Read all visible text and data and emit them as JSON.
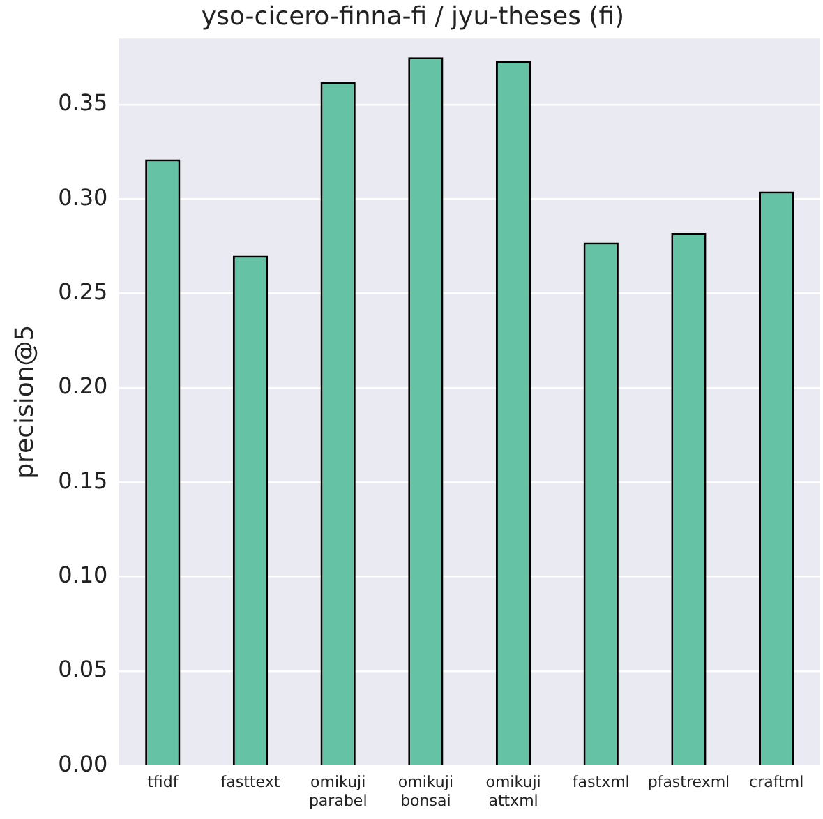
{
  "chart_data": {
    "type": "bar",
    "title": "yso-cicero-finna-fi / jyu-theses (fi)",
    "ylabel": "precision@5",
    "categories": [
      "tfidf",
      "fasttext",
      "omikuji\nparabel",
      "omikuji\nbonsai",
      "omikuji\nattxml",
      "fastxml",
      "pfastrexml",
      "craftml"
    ],
    "values": [
      0.321,
      0.27,
      0.362,
      0.375,
      0.373,
      0.277,
      0.282,
      0.304
    ],
    "color": "#66c2a5",
    "ylim": [
      0,
      0.385
    ],
    "yticks": [
      {
        "value": 0,
        "label": "0.00"
      },
      {
        "value": 0.05,
        "label": "0.05"
      },
      {
        "value": 0.1,
        "label": "0.10"
      },
      {
        "value": 0.15,
        "label": "0.15"
      },
      {
        "value": 0.2,
        "label": "0.20"
      },
      {
        "value": 0.25,
        "label": "0.25"
      },
      {
        "value": 0.3,
        "label": "0.30"
      },
      {
        "value": 0.35,
        "label": "0.35"
      }
    ],
    "grid": "y",
    "legend": false
  }
}
